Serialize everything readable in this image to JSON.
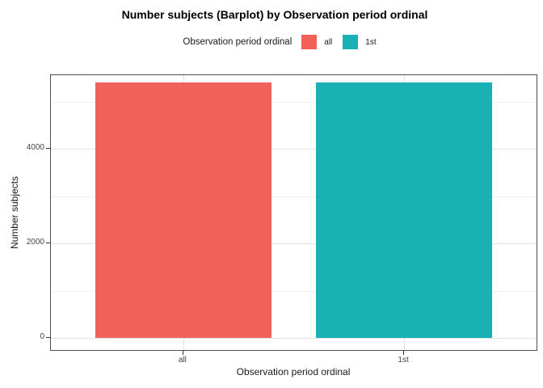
{
  "legend": {
    "title": "Observation period ordinal",
    "items": [
      {
        "label": "all",
        "color": "#F2605A"
      },
      {
        "label": "1st",
        "color": "#1AB1B5"
      }
    ]
  },
  "chart_data": {
    "type": "bar",
    "title": "Number subjects (Barplot) by Observation period ordinal",
    "xlabel": "Observation period ordinal",
    "ylabel": "Number subjects",
    "categories": [
      "all",
      "1st"
    ],
    "values": [
      5400,
      5400
    ],
    "colors": [
      "#F2605A",
      "#1AB1B5"
    ],
    "yticks": [
      0,
      2000,
      4000
    ],
    "yticks_minor": [
      1000,
      3000,
      5000
    ],
    "ylim": [
      -250,
      5560
    ],
    "bar_rel_width": 0.8,
    "grid": true,
    "legend_position": "top",
    "panel_border_color": "#4d4d4d",
    "grid_major_color": "#e3e3e3",
    "grid_minor_color": "#f1f1f1"
  }
}
